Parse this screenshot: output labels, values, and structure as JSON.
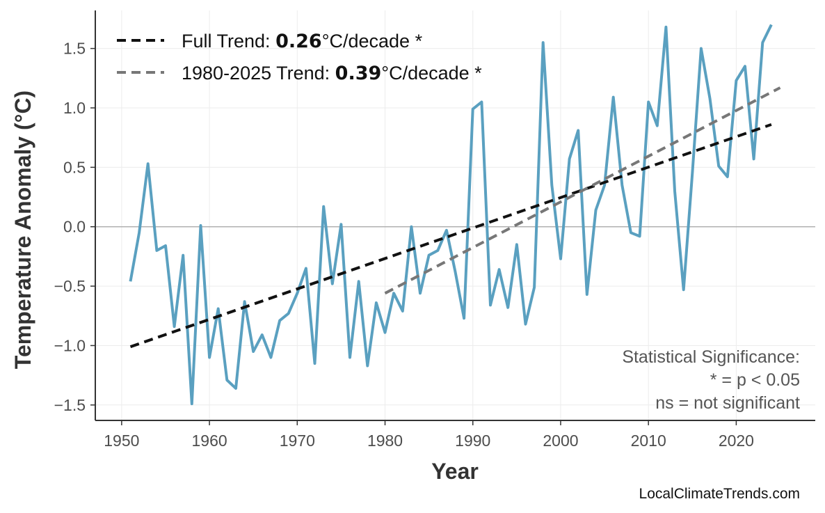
{
  "chart_data": {
    "type": "line",
    "xlabel": "Year",
    "ylabel": "Temperature Anomaly (°C)",
    "xlim": [
      1947,
      2029
    ],
    "ylim": [
      -1.63,
      1.82
    ],
    "xticks": [
      1950,
      1960,
      1970,
      1980,
      1990,
      2000,
      2010,
      2020
    ],
    "yticks": [
      -1.5,
      -1.0,
      -0.5,
      0.0,
      0.5,
      1.0,
      1.5
    ],
    "ytick_labels": [
      "−1.5",
      "−1.0",
      "−0.5",
      "0.0",
      "0.5",
      "1.0",
      "1.5"
    ],
    "grid": true,
    "zero_line": true,
    "legend_placement": "top-left",
    "series": [
      {
        "kind": "data",
        "color": "#5aa0c0",
        "x": [
          1951,
          1952,
          1953,
          1954,
          1955,
          1956,
          1957,
          1958,
          1959,
          1960,
          1961,
          1962,
          1963,
          1964,
          1965,
          1966,
          1967,
          1968,
          1969,
          1970,
          1971,
          1972,
          1973,
          1974,
          1975,
          1976,
          1977,
          1978,
          1979,
          1980,
          1981,
          1982,
          1983,
          1984,
          1985,
          1986,
          1987,
          1988,
          1989,
          1990,
          1991,
          1992,
          1993,
          1994,
          1995,
          1996,
          1997,
          1998,
          1999,
          2000,
          2001,
          2002,
          2003,
          2004,
          2005,
          2006,
          2007,
          2008,
          2009,
          2010,
          2011,
          2012,
          2013,
          2014,
          2015,
          2016,
          2017,
          2018,
          2019,
          2020,
          2021,
          2022,
          2023,
          2024
        ],
        "y": [
          -0.46,
          -0.05,
          0.53,
          -0.2,
          -0.16,
          -0.84,
          -0.24,
          -1.49,
          0.01,
          -1.1,
          -0.69,
          -1.29,
          -1.36,
          -0.63,
          -1.05,
          -0.91,
          -1.1,
          -0.79,
          -0.73,
          -0.56,
          -0.35,
          -1.15,
          0.17,
          -0.48,
          0.02,
          -1.1,
          -0.46,
          -1.17,
          -0.64,
          -0.89,
          -0.56,
          -0.71,
          0.0,
          -0.56,
          -0.24,
          -0.2,
          -0.03,
          -0.38,
          -0.77,
          0.99,
          1.05,
          -0.66,
          -0.36,
          -0.68,
          -0.15,
          -0.82,
          -0.51,
          1.55,
          0.35,
          -0.27,
          0.57,
          0.81,
          -0.57,
          0.14,
          0.35,
          1.09,
          0.35,
          -0.05,
          -0.08,
          1.05,
          0.85,
          1.68,
          0.3,
          -0.53,
          0.45,
          1.5,
          1.08,
          0.51,
          0.42,
          1.23,
          1.35,
          0.57,
          1.55,
          1.7
        ]
      },
      {
        "kind": "trend",
        "name_prefix": "Full Trend: ",
        "rate": "0.26",
        "name_suffix": "°C/decade *",
        "color": "#111111",
        "x": [
          1951,
          2024
        ],
        "y": [
          -1.01,
          0.86
        ]
      },
      {
        "kind": "trend",
        "name_prefix": "1980-2025 Trend: ",
        "rate": "0.39",
        "name_suffix": "°C/decade *",
        "color": "#777777",
        "x": [
          1980,
          2025
        ],
        "y": [
          -0.56,
          1.17
        ]
      }
    ],
    "annotations": [
      "Statistical Significance:",
      "* = p < 0.05",
      "ns = not significant"
    ],
    "credit": "LocalClimateTrends.com"
  }
}
